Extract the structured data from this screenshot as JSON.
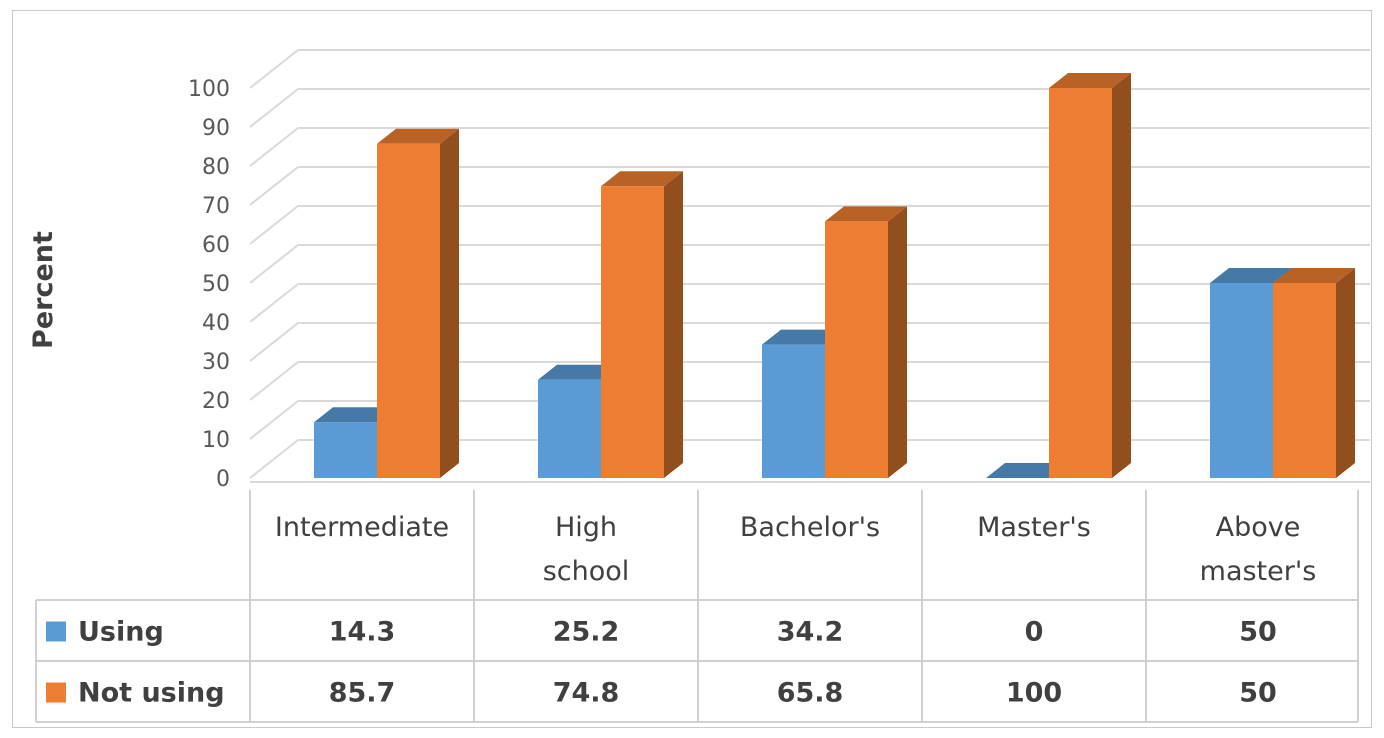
{
  "chart_data": {
    "type": "bar",
    "three_d": true,
    "categories": [
      "Intermediate",
      "High school",
      "Bachelor's",
      "Master's",
      "Above master's"
    ],
    "category_lines": [
      [
        "Intermediate"
      ],
      [
        "High",
        "school"
      ],
      [
        "Bachelor's"
      ],
      [
        "Master's"
      ],
      [
        "Above",
        "master's"
      ]
    ],
    "series": [
      {
        "name": "Using",
        "values": [
          14.3,
          25.2,
          34.2,
          0,
          50
        ],
        "color": "#5b9bd5"
      },
      {
        "name": "Not using",
        "values": [
          85.7,
          74.8,
          65.8,
          100,
          50
        ],
        "color": "#ed7d31"
      }
    ],
    "value_labels": [
      [
        "14.3",
        "25.2",
        "34.2",
        "0",
        "50"
      ],
      [
        "85.7",
        "74.8",
        "65.8",
        "100",
        "50"
      ]
    ],
    "ylabel": "Percent",
    "xlabel": "",
    "ylim": [
      0,
      100
    ],
    "yticks": [
      0,
      10,
      20,
      30,
      40,
      50,
      60,
      70,
      80,
      90,
      100
    ],
    "grid": true,
    "data_table": true,
    "legend": "data-table"
  }
}
